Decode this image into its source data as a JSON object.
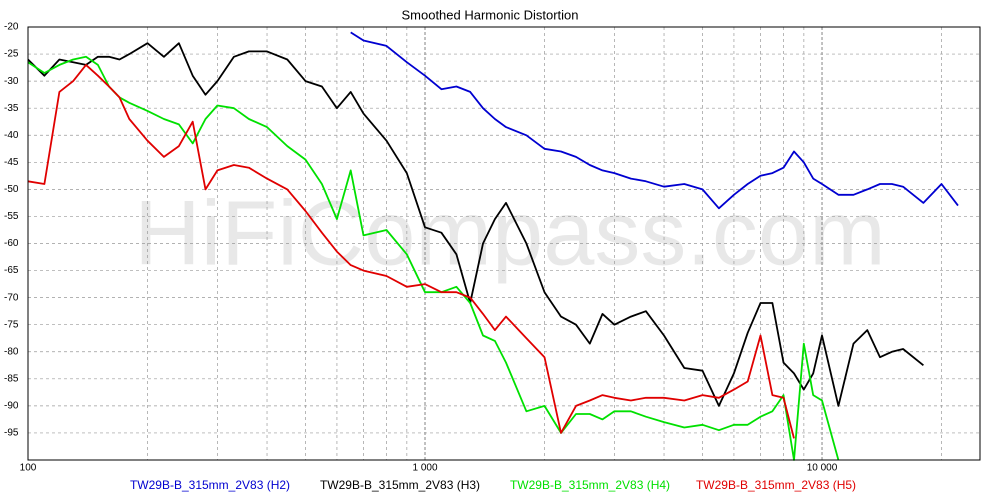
{
  "chart_data": {
    "type": "line",
    "title": "Smoothed Harmonic Distortion",
    "watermark": "HiFiCompass.com",
    "x_scale": "log",
    "grid": true,
    "xlim": [
      100,
      25000
    ],
    "ylim": [
      -100,
      -20
    ],
    "xticks": [
      {
        "value": 100,
        "label": "100"
      },
      {
        "value": 1000,
        "label": "1 000"
      },
      {
        "value": 10000,
        "label": "10 000"
      }
    ],
    "yticks": [
      -20,
      -25,
      -30,
      -35,
      -40,
      -45,
      -50,
      -55,
      -60,
      -65,
      -70,
      -75,
      -80,
      -85,
      -90,
      -95
    ],
    "x": [
      100,
      110,
      120,
      130,
      140,
      150,
      160,
      170,
      180,
      200,
      220,
      240,
      260,
      280,
      300,
      330,
      360,
      400,
      450,
      500,
      550,
      600,
      650,
      700,
      800,
      900,
      1000,
      1100,
      1200,
      1300,
      1400,
      1500,
      1600,
      1800,
      2000,
      2200,
      2400,
      2600,
      2800,
      3000,
      3300,
      3600,
      4000,
      4500,
      5000,
      5500,
      6000,
      6500,
      7000,
      7500,
      8000,
      8500,
      9000,
      9500,
      10000,
      11000,
      12000,
      13000,
      14000,
      15000,
      16000,
      18000,
      20000,
      22000
    ],
    "series": [
      {
        "name": "TW29B-B_315mm_2V83 (H2)",
        "color": "#0000d0",
        "values": [
          null,
          null,
          null,
          null,
          null,
          null,
          null,
          null,
          null,
          null,
          null,
          null,
          null,
          null,
          null,
          null,
          null,
          null,
          null,
          null,
          null,
          null,
          -21,
          -22.5,
          -23.5,
          -26.5,
          -29,
          -31.5,
          -31,
          -32,
          -35,
          -37,
          -38.5,
          -40,
          -42.5,
          -43,
          -44,
          -45.5,
          -46.5,
          -47,
          -48,
          -48.5,
          -49.5,
          -49,
          -50,
          -53.5,
          -51,
          -49,
          -47.5,
          -47,
          -46,
          -43,
          -45,
          -48,
          -49,
          -51,
          -51,
          -50,
          -49,
          -49,
          -49.5,
          -52.5,
          -49,
          -53
        ]
      },
      {
        "name": "TW29B-B_315mm_2V83 (H3)",
        "color": "#000000",
        "values": [
          -26,
          -29,
          -26,
          -26.5,
          -27,
          -25.5,
          -25.5,
          -26,
          -25,
          -23,
          -25.5,
          -23,
          -29,
          -32.5,
          -30,
          -25.5,
          -24.5,
          -24.5,
          -26,
          -30,
          -31,
          -35,
          -32,
          -36,
          -41,
          -47,
          -57,
          -58,
          -62,
          -71,
          -60,
          -55.5,
          -52.5,
          -60,
          -69,
          -73.5,
          -75,
          -78.5,
          -73,
          -75,
          -73.5,
          -72.5,
          -77,
          -83,
          -83.5,
          -90,
          -84,
          -76.5,
          -71,
          -71,
          -82,
          -84,
          -87,
          -84,
          -77,
          -90,
          -78.5,
          -76,
          -81,
          -80,
          -79.5,
          -82.5,
          null,
          null
        ]
      },
      {
        "name": "TW29B-B_315mm_2V83 (H4)",
        "color": "#00e000",
        "values": [
          -26.5,
          -28.5,
          -27,
          -26,
          -25.5,
          -27,
          -31,
          -33,
          -34,
          -35.5,
          -37,
          -38,
          -41.5,
          -37,
          -34.5,
          -35,
          -37,
          -38.5,
          -42,
          -44.5,
          -49,
          -55.5,
          -46.5,
          -58.5,
          -57.5,
          -62,
          -69,
          -69,
          -68,
          -71,
          -77,
          -78,
          -82,
          -91,
          -90,
          -95,
          -91.5,
          -91.5,
          -92.5,
          -91,
          -91,
          -92,
          -93,
          -94,
          -93.5,
          -94.5,
          -93.5,
          -93.5,
          -92,
          -91,
          -88,
          -100,
          -78.5,
          -88,
          -89,
          -100,
          null,
          null,
          null,
          null,
          null,
          null,
          null,
          null
        ]
      },
      {
        "name": "TW29B-B_315mm_2V83 (H5)",
        "color": "#e00000",
        "values": [
          -48.5,
          -49,
          -32,
          -30,
          -27,
          -29,
          -31,
          -33,
          -37,
          -41,
          -44,
          -42,
          -37.5,
          -50,
          -46.5,
          -45.5,
          -46,
          -48,
          -50,
          -54,
          -58,
          -61.5,
          -64,
          -65,
          -66,
          -68,
          -67.5,
          -69,
          -69,
          -70,
          -73,
          -76,
          -73.5,
          -77.5,
          -81,
          -95,
          -90,
          -89,
          -88,
          -88.5,
          -89,
          -88.5,
          -88.5,
          -89,
          -88,
          -88.5,
          -87,
          -85.5,
          -77,
          -88,
          -88.5,
          -96,
          null,
          null,
          null,
          null,
          null,
          null,
          null,
          null,
          null,
          null,
          null,
          null
        ]
      }
    ]
  }
}
